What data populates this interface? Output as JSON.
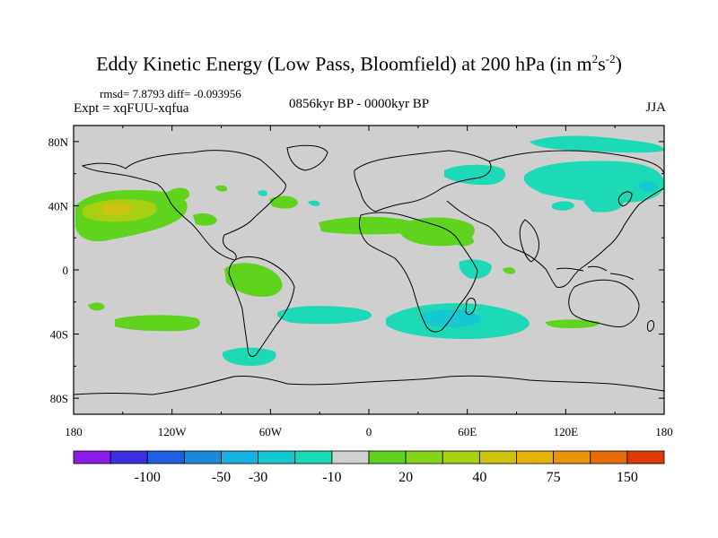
{
  "title": "Eddy Kinetic Energy (Low Pass, Bloomfield) at 200 hPa (in m",
  "title_sup1": "2",
  "title_mid": "s",
  "title_sup2": "-2",
  "title_end": ")",
  "stats_line": "rmsd= 7.8793 diff= -0.093956",
  "expt_line": "Expt = xqFUU-xqfua",
  "period_label": "0856kyr BP - 0000kyr BP",
  "season_label": "JJA",
  "map": {
    "lat_labels": [
      "80N",
      "40N",
      "0",
      "40S",
      "80S"
    ],
    "lon_labels": [
      "180",
      "120W",
      "60W",
      "0",
      "60E",
      "120E",
      "180"
    ],
    "background_color": "#cfcfcf"
  },
  "colorbar": {
    "labels": [
      "-100",
      "-50",
      "-30",
      "-10",
      "20",
      "40",
      "75",
      "150"
    ],
    "colors": [
      "#8a1ee6",
      "#3c2fe0",
      "#1f5fe0",
      "#1c8ad8",
      "#18b0e0",
      "#16c8d2",
      "#1dd9b6",
      "#d0d0d0",
      "#5fd31e",
      "#86d31b",
      "#a9cf14",
      "#cdc20f",
      "#e4b20c",
      "#ea9208",
      "#e46d05",
      "#dc3a08"
    ]
  },
  "chart_data": {
    "type": "heatmap",
    "title": "Eddy Kinetic Energy (Low Pass, Bloomfield) at 200 hPa (in m2s-2)",
    "xlabel": "",
    "ylabel": "",
    "xlim": [
      -180,
      180
    ],
    "ylim": [
      -90,
      90
    ],
    "x_ticks": [
      "180",
      "120W",
      "60W",
      "0",
      "60E",
      "120E",
      "180"
    ],
    "y_ticks": [
      "80N",
      "40N",
      "0",
      "40S",
      "80S"
    ],
    "legend_levels": [
      -100,
      -50,
      -30,
      -10,
      20,
      40,
      75,
      150
    ],
    "regions": [
      {
        "name": "NE Pacific positive",
        "lon_center": -155,
        "lat_center": 37,
        "approx_value": 40
      },
      {
        "name": "Atlantic subtropics positive",
        "lon_center": -10,
        "lat_center": 28,
        "approx_value": 20
      },
      {
        "name": "North Africa/Arabia positive",
        "lon_center": 35,
        "lat_center": 20,
        "approx_value": 20
      },
      {
        "name": "South America positive",
        "lon_center": -65,
        "lat_center": -3,
        "approx_value": 20
      },
      {
        "name": "South Pacific positive",
        "lon_center": -140,
        "lat_center": -30,
        "approx_value": 20
      },
      {
        "name": "Southern Africa negative",
        "lon_center": 40,
        "lat_center": -33,
        "approx_value": -30
      },
      {
        "name": "South Atlantic negative",
        "lon_center": -20,
        "lat_center": -25,
        "approx_value": -10
      },
      {
        "name": "North Asia negative",
        "lon_center": 100,
        "lat_center": 47,
        "approx_value": -10
      },
      {
        "name": "Arctic negative",
        "lon_center": 115,
        "lat_center": 77,
        "approx_value": -10
      },
      {
        "name": "Southern Ocean negative",
        "lon_center": -60,
        "lat_center": -48,
        "approx_value": -10
      }
    ]
  }
}
